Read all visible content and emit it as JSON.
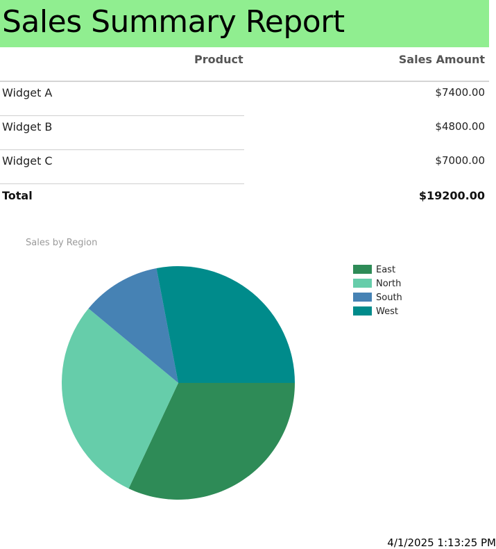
{
  "report": {
    "title": "Sales Summary Report",
    "title_bg": "#90ee90"
  },
  "table": {
    "headers": {
      "product": "Product",
      "amount": "Sales Amount"
    },
    "rows": [
      {
        "product": "Widget A",
        "amount": "$7400.00"
      },
      {
        "product": "Widget B",
        "amount": "$4800.00"
      },
      {
        "product": "Widget C",
        "amount": "$7000.00"
      }
    ],
    "total": {
      "label": "Total",
      "amount": "$19200.00"
    }
  },
  "chart_data": {
    "type": "pie",
    "title": "Sales by Region",
    "legend_position": "top-right",
    "slices": [
      {
        "name": "East",
        "value": 32,
        "color": "#2e8b57"
      },
      {
        "name": "North",
        "value": 29,
        "color": "#66cdaa"
      },
      {
        "name": "South",
        "value": 11,
        "color": "#4682b4"
      },
      {
        "name": "West",
        "value": 28,
        "color": "#008b8b"
      }
    ]
  },
  "footer": {
    "timestamp": "4/1/2025 1:13:25 PM"
  }
}
